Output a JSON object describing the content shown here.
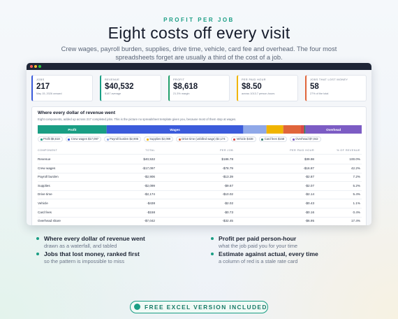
{
  "header": {
    "eyebrow": "PROFIT PER JOB",
    "title": "Eight costs off every visit",
    "subtitle": "Crew wages, payroll burden, supplies, drive time, vehicle, card fee and overhead. The four most spreadsheets forget are usually a third of the cost of a job."
  },
  "cards": [
    {
      "label": "JOBS",
      "value": "217",
      "sub": "May 15, 2026 onward",
      "color": "#3b5bdb"
    },
    {
      "label": "REVENUE",
      "value": "$40,532",
      "sub": "$187 average",
      "color": "#1a9e84"
    },
    {
      "label": "PROFIT",
      "value": "$8,618",
      "sub": "21.3% margin",
      "color": "#22a06b"
    },
    {
      "label": "PER PAID HOUR",
      "value": "$8.50",
      "sub": "across 1013.7 person-hours",
      "color": "#f0b400"
    },
    {
      "label": "JOBS THAT LOST MONEY",
      "value": "58",
      "sub": "27% of the total",
      "color": "#e0653a"
    }
  ],
  "panel": {
    "title": "Where every dollar of revenue went",
    "subtitle": "Eight components, added up across 217 completed jobs. This is the picture no spreadsheet template gives you, because most of them stop at wages.",
    "segments": [
      {
        "bar_label": "Profit",
        "chip_label": "Profit",
        "value": 8618,
        "value_label": "$8,618",
        "color": "#1a9e84"
      },
      {
        "bar_label": "Wages",
        "chip_label": "Crew wages",
        "value": 17097,
        "value_label": "$17,097",
        "color": "#3b5bdb"
      },
      {
        "chip_label": "Payroll burden",
        "value": 2906,
        "value_label": "$2,906",
        "color": "#8fa8e8"
      },
      {
        "chip_label": "Supplies",
        "value": 2099,
        "value_label": "$2,099",
        "color": "#f0b400"
      },
      {
        "chip_label": "Drive time (unbilled wage)",
        "value": 2174,
        "value_label": "$2,174",
        "color": "#e0653a"
      },
      {
        "chip_label": "Vehicle",
        "value": 438,
        "value_label": "$438",
        "color": "#d94848"
      },
      {
        "chip_label": "Card fees",
        "value": 158,
        "value_label": "$158",
        "color": "#2f7d6e"
      },
      {
        "bar_label": "Overhead",
        "chip_label": "Overhead",
        "value": 7042,
        "value_label": "$7,042",
        "color": "#7c5cc4"
      }
    ],
    "table": {
      "columns": [
        "COMPONENT",
        "TOTAL",
        "PER JOB",
        "PER PAID HOUR",
        "% OF REVENUE"
      ],
      "rows": [
        [
          "Revenue",
          "$40,532",
          "$186.78",
          "$39.98",
          "100.0%"
        ],
        [
          "Crew wages",
          "-$17,097",
          "-$78.79",
          "-$16.87",
          "42.2%"
        ],
        [
          "Payroll burden",
          "-$2,906",
          "-$13.39",
          "-$2.87",
          "7.2%"
        ],
        [
          "Supplies",
          "-$2,099",
          "-$9.67",
          "-$2.07",
          "5.2%"
        ],
        [
          "Drive time",
          "-$2,174",
          "-$10.02",
          "-$2.14",
          "5.4%"
        ],
        [
          "Vehicle",
          "-$438",
          "-$2.02",
          "-$0.43",
          "1.1%"
        ],
        [
          "Card fees",
          "-$158",
          "-$0.73",
          "-$0.16",
          "0.4%"
        ],
        [
          "Overhead share",
          "-$7,042",
          "-$32.45",
          "-$6.95",
          "17.4%"
        ]
      ]
    }
  },
  "features": [
    {
      "title": "Where every dollar of revenue went",
      "text": "drawn as a waterfall, and tabled"
    },
    {
      "title": "Jobs that lost money, ranked first",
      "text": "so the pattern is impossible to miss"
    },
    {
      "title": "Profit per paid person-hour",
      "text": "what the job paid you for your time"
    },
    {
      "title": "Estimate against actual, every time",
      "text": "a column of red is a stale rate card"
    }
  ],
  "cta": "FREE EXCEL VERSION INCLUDED"
}
